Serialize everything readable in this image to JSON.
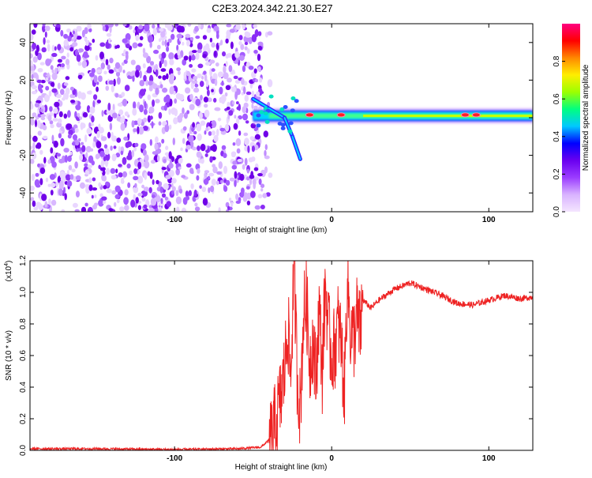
{
  "title": "C2E3.2024.342.21.30.E27",
  "chart_data": [
    {
      "type": "heatmap",
      "xlabel": "Height of straight line (km)",
      "ylabel": "Frequency (Hz)",
      "xlim": [
        -192,
        128
      ],
      "ylim": [
        -50,
        50
      ],
      "xticks": [
        -100,
        0,
        100
      ],
      "xtick_labels": [
        "-100",
        "0",
        "100"
      ],
      "yticks": [
        -40,
        -20,
        0,
        20,
        40
      ],
      "ytick_labels": [
        "-40",
        "-20",
        "0",
        "20",
        "40"
      ],
      "colorbar": {
        "label": "Normalized spectral amplitude",
        "range": [
          0,
          1
        ],
        "ticks": [
          0.0,
          0.2,
          0.4,
          0.6,
          0.8
        ],
        "tick_labels": [
          "0.0",
          "0.2",
          "0.4",
          "0.6",
          "0.8"
        ],
        "colors": [
          "#f4e6ff",
          "#d9b3ff",
          "#9b3cff",
          "#6a00f0",
          "#0000ff",
          "#00c8ff",
          "#00ff80",
          "#9cff00",
          "#ffee00",
          "#ff8800",
          "#ff0000",
          "#ff0080"
        ]
      },
      "noise_region_x": [
        -192,
        -45
      ],
      "noise_amplitude": 0.15,
      "signal_x_start": -50,
      "signal_center_hz": 1,
      "branch_track": [
        [
          -50,
          10
        ],
        [
          -40,
          5
        ],
        [
          -30,
          0
        ],
        [
          -25,
          -10
        ],
        [
          -20,
          -22
        ]
      ],
      "strong_peaks": [
        [
          -14,
          1.5
        ],
        [
          6,
          1.5
        ],
        [
          85,
          1.5
        ],
        [
          92,
          1.5
        ]
      ]
    },
    {
      "type": "line",
      "xlabel": "Height of straight line (km)",
      "ylabel": "SNR (10 * v/v)",
      "exponent_label": "(x10",
      "exponent_value": "4",
      "exponent_close": ")",
      "xlim": [
        -192,
        128
      ],
      "ylim": [
        0,
        1.2
      ],
      "xticks": [
        -100,
        0,
        100
      ],
      "xtick_labels": [
        "-100",
        "0",
        "100"
      ],
      "yticks": [
        0,
        0.2,
        0.4,
        0.6,
        0.8,
        1.0,
        1.2
      ],
      "ytick_labels": [
        "0.0",
        "0.2",
        "0.4",
        "0.6",
        "0.8",
        "1.0",
        "1.2"
      ],
      "series": [
        {
          "color": "#ee2222",
          "x": [
            -192,
            -150,
            -100,
            -60,
            -45,
            -38,
            -35,
            -32,
            -30,
            -28,
            -26,
            -24,
            -22,
            -20,
            -18,
            -16,
            -14,
            -12,
            -10,
            -8,
            -6,
            -4,
            -2,
            0,
            2,
            4,
            6,
            8,
            10,
            12,
            14,
            16,
            18,
            20,
            25,
            30,
            40,
            50,
            60,
            70,
            80,
            90,
            100,
            110,
            120,
            128
          ],
          "y": [
            0.01,
            0.01,
            0.005,
            0.01,
            0.02,
            0.08,
            0.2,
            0.35,
            0.5,
            0.8,
            0.45,
            1.2,
            0.5,
            0.25,
            0.85,
            0.95,
            0.55,
            0.7,
            0.45,
            0.9,
            0.5,
            1.05,
            0.75,
            0.6,
            0.65,
            0.8,
            0.7,
            0.35,
            1.1,
            0.75,
            0.7,
            0.85,
            0.75,
            0.95,
            0.9,
            0.95,
            1.02,
            1.06,
            1.02,
            0.98,
            0.93,
            0.92,
            0.95,
            0.98,
            0.96,
            0.97
          ]
        }
      ]
    }
  ]
}
